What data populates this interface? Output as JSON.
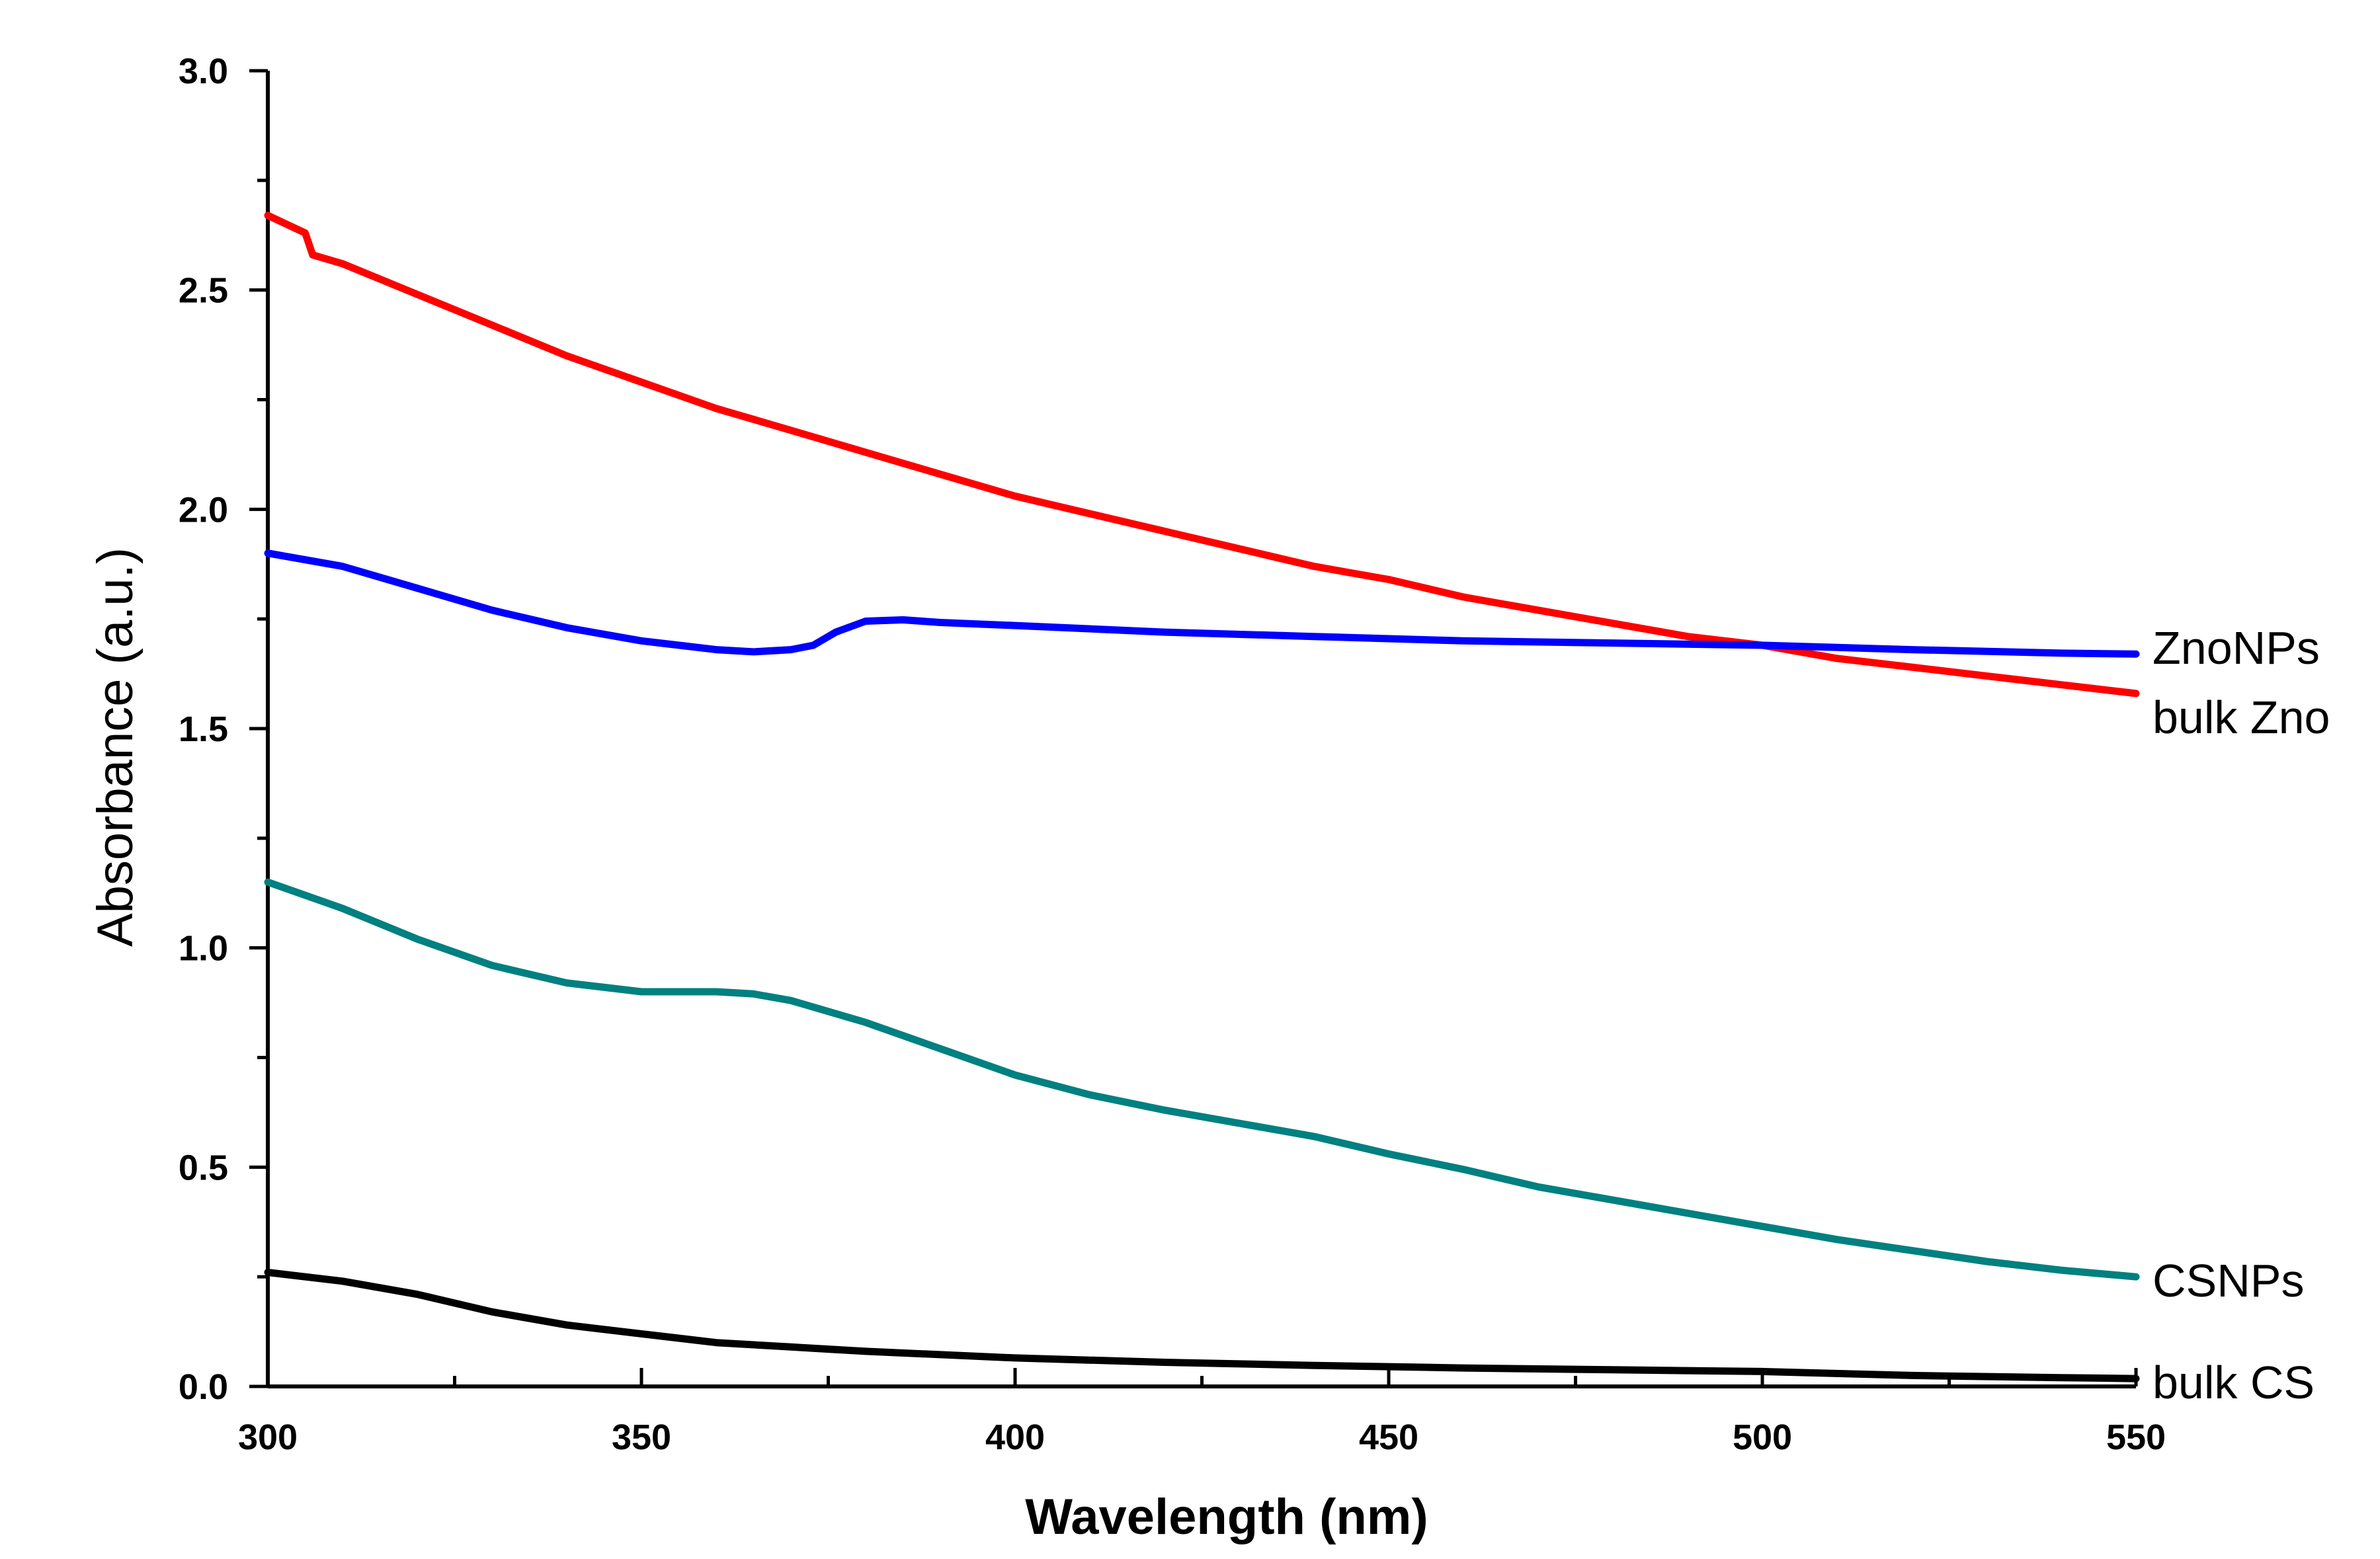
{
  "chart_data": {
    "type": "line",
    "title": "",
    "xlabel": "Wavelength (nm)",
    "ylabel": "Absorbance (a.u.)",
    "xlim": [
      300,
      550
    ],
    "ylim": [
      0.0,
      3.0
    ],
    "xticks": [
      300,
      350,
      400,
      450,
      500,
      550
    ],
    "xtick_labels": [
      "300",
      "350",
      "400",
      "450",
      "500",
      "550"
    ],
    "yticks": [
      0.0,
      0.5,
      1.0,
      1.5,
      2.0,
      2.5,
      3.0
    ],
    "ytick_labels": [
      "0.0",
      "0.5",
      "1.0",
      "1.5",
      "2.0",
      "2.5",
      "3.0"
    ],
    "grid": false,
    "legend": "inline labels at right end of each line",
    "series": [
      {
        "name": "bulk Zno",
        "color": "#ff0000",
        "x": [
          300,
          305,
          306,
          310,
          320,
          330,
          340,
          350,
          360,
          370,
          380,
          390,
          400,
          410,
          420,
          430,
          440,
          450,
          460,
          470,
          480,
          490,
          500,
          510,
          520,
          530,
          540,
          550
        ],
        "y": [
          2.67,
          2.63,
          2.58,
          2.56,
          2.49,
          2.42,
          2.35,
          2.29,
          2.23,
          2.18,
          2.13,
          2.08,
          2.03,
          1.99,
          1.95,
          1.91,
          1.87,
          1.84,
          1.8,
          1.77,
          1.74,
          1.71,
          1.69,
          1.66,
          1.64,
          1.62,
          1.6,
          1.58
        ]
      },
      {
        "name": "ZnoNPs",
        "color": "#0000ff",
        "x": [
          300,
          310,
          320,
          330,
          340,
          350,
          360,
          365,
          370,
          373,
          376,
          380,
          385,
          390,
          400,
          420,
          440,
          460,
          480,
          500,
          520,
          540,
          550
        ],
        "y": [
          1.9,
          1.87,
          1.82,
          1.77,
          1.73,
          1.7,
          1.68,
          1.675,
          1.68,
          1.69,
          1.72,
          1.745,
          1.748,
          1.742,
          1.735,
          1.72,
          1.71,
          1.7,
          1.695,
          1.69,
          1.68,
          1.672,
          1.67
        ]
      },
      {
        "name": "CSNPs",
        "color": "#008080",
        "x": [
          300,
          310,
          320,
          330,
          340,
          350,
          360,
          365,
          370,
          380,
          390,
          400,
          410,
          420,
          430,
          440,
          450,
          460,
          470,
          480,
          490,
          500,
          510,
          520,
          530,
          540,
          550
        ],
        "y": [
          1.15,
          1.09,
          1.02,
          0.96,
          0.92,
          0.9,
          0.9,
          0.895,
          0.88,
          0.83,
          0.77,
          0.71,
          0.665,
          0.63,
          0.6,
          0.57,
          0.53,
          0.495,
          0.455,
          0.425,
          0.395,
          0.365,
          0.335,
          0.31,
          0.285,
          0.265,
          0.25
        ]
      },
      {
        "name": "bulk CS",
        "color": "#000000",
        "x": [
          300,
          310,
          320,
          330,
          340,
          350,
          360,
          370,
          380,
          400,
          420,
          440,
          460,
          480,
          500,
          520,
          540,
          550
        ],
        "y": [
          0.26,
          0.24,
          0.21,
          0.17,
          0.14,
          0.12,
          0.1,
          0.09,
          0.08,
          0.065,
          0.055,
          0.048,
          0.042,
          0.038,
          0.034,
          0.025,
          0.02,
          0.018
        ]
      }
    ]
  }
}
